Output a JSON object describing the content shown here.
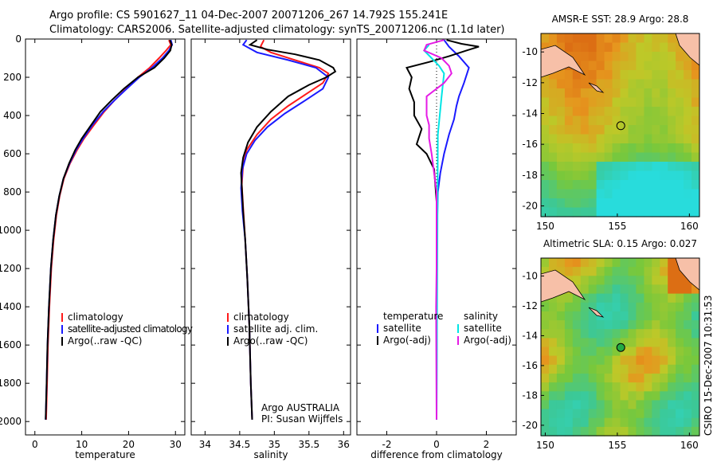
{
  "header": {
    "line1": "Argo profile: CS 5901627_11 04-Dec-2007 20071206_267 14.792S 155.241E",
    "line2": "Climatology: CARS2006. Satellite-adjusted climatology: synTS_20071206.nc (1.1d later)"
  },
  "side_label": "CSIRO 15-Dec-2007 10:31:53",
  "colors": {
    "clim": "#ff1a1a",
    "sat": "#1a1aff",
    "argo": "#000000",
    "sal_sat": "#00e5e5",
    "sal_argo": "#e51ae5"
  },
  "chart_data": [
    {
      "type": "line",
      "id": "temperature",
      "xlabel": "temperature",
      "ylabel": "",
      "xlim": [
        -2,
        32
      ],
      "ylim": [
        2070,
        0
      ],
      "y_reversed": true,
      "xticks": [
        0,
        10,
        20,
        30
      ],
      "yticks": [
        0,
        200,
        400,
        600,
        800,
        1000,
        1200,
        1400,
        1600,
        1800,
        2000
      ],
      "legend": [
        "climatology",
        "satellite-adjusted climatology",
        "Argo(..raw -QC)"
      ],
      "series": [
        {
          "name": "climatology",
          "color": "#ff1a1a",
          "points": [
            [
              28.6,
              5
            ],
            [
              29.0,
              30
            ],
            [
              28.0,
              60
            ],
            [
              26.5,
              100
            ],
            [
              24.5,
              150
            ],
            [
              22.0,
              200
            ],
            [
              19.5,
              260
            ],
            [
              17.0,
              320
            ],
            [
              14.8,
              380
            ],
            [
              12.6,
              450
            ],
            [
              10.5,
              520
            ],
            [
              9.0,
              580
            ],
            [
              7.5,
              650
            ],
            [
              6.2,
              730
            ],
            [
              5.3,
              820
            ],
            [
              4.6,
              920
            ],
            [
              4.0,
              1050
            ],
            [
              3.5,
              1200
            ],
            [
              3.1,
              1400
            ],
            [
              2.8,
              1600
            ],
            [
              2.6,
              1800
            ],
            [
              2.4,
              1990
            ]
          ]
        },
        {
          "name": "satellite-adjusted climatology",
          "color": "#1a1aff",
          "points": [
            [
              29.0,
              5
            ],
            [
              29.3,
              30
            ],
            [
              28.6,
              60
            ],
            [
              27.2,
              100
            ],
            [
              25.0,
              150
            ],
            [
              22.3,
              200
            ],
            [
              19.6,
              260
            ],
            [
              17.0,
              320
            ],
            [
              14.6,
              380
            ],
            [
              12.3,
              450
            ],
            [
              10.3,
              520
            ],
            [
              8.8,
              580
            ],
            [
              7.4,
              650
            ],
            [
              6.1,
              730
            ],
            [
              5.2,
              820
            ],
            [
              4.5,
              920
            ],
            [
              3.9,
              1050
            ],
            [
              3.4,
              1200
            ],
            [
              3.0,
              1400
            ],
            [
              2.7,
              1600
            ],
            [
              2.5,
              1800
            ],
            [
              2.3,
              1990
            ]
          ]
        },
        {
          "name": "Argo(..raw -QC)",
          "color": "#000000",
          "points": [
            [
              28.8,
              5
            ],
            [
              29.2,
              30
            ],
            [
              28.9,
              60
            ],
            [
              27.6,
              100
            ],
            [
              25.5,
              150
            ],
            [
              22.0,
              200
            ],
            [
              19.0,
              260
            ],
            [
              16.4,
              320
            ],
            [
              14.0,
              380
            ],
            [
              12.0,
              450
            ],
            [
              10.0,
              520
            ],
            [
              8.6,
              580
            ],
            [
              7.3,
              650
            ],
            [
              6.1,
              730
            ],
            [
              5.2,
              820
            ],
            [
              4.5,
              920
            ],
            [
              3.9,
              1050
            ],
            [
              3.4,
              1200
            ],
            [
              3.0,
              1400
            ],
            [
              2.7,
              1600
            ],
            [
              2.5,
              1800
            ],
            [
              2.3,
              1990
            ]
          ]
        }
      ]
    },
    {
      "type": "line",
      "id": "salinity",
      "xlabel": "salinity",
      "ylabel": "",
      "xlim": [
        33.8,
        36.1
      ],
      "ylim": [
        2070,
        0
      ],
      "y_reversed": true,
      "xticks": [
        34,
        34.5,
        35,
        35.5,
        36
      ],
      "xticklabels": [
        "34",
        "34.5",
        "35",
        "35.5",
        "36"
      ],
      "legend": [
        "climatology",
        "satellite adj. clim.",
        "Argo(..raw -QC)"
      ],
      "annotation": [
        "Argo AUSTRALIA",
        "PI: Susan Wijffels"
      ],
      "series": [
        {
          "name": "climatology",
          "color": "#ff1a1a",
          "points": [
            [
              34.85,
              5
            ],
            [
              34.8,
              40
            ],
            [
              34.95,
              70
            ],
            [
              35.3,
              110
            ],
            [
              35.65,
              150
            ],
            [
              35.78,
              180
            ],
            [
              35.7,
              230
            ],
            [
              35.45,
              290
            ],
            [
              35.2,
              350
            ],
            [
              34.95,
              420
            ],
            [
              34.75,
              500
            ],
            [
              34.6,
              580
            ],
            [
              34.55,
              660
            ],
            [
              34.53,
              760
            ],
            [
              34.55,
              880
            ],
            [
              34.58,
              1050
            ],
            [
              34.61,
              1250
            ],
            [
              34.64,
              1500
            ],
            [
              34.66,
              1800
            ],
            [
              34.68,
              1990
            ]
          ]
        },
        {
          "name": "satellite adj. clim.",
          "color": "#1a1aff",
          "points": [
            [
              34.6,
              5
            ],
            [
              34.55,
              30
            ],
            [
              34.75,
              70
            ],
            [
              35.2,
              110
            ],
            [
              35.6,
              150
            ],
            [
              35.78,
              200
            ],
            [
              35.7,
              260
            ],
            [
              35.45,
              320
            ],
            [
              35.15,
              390
            ],
            [
              34.9,
              460
            ],
            [
              34.72,
              530
            ],
            [
              34.6,
              600
            ],
            [
              34.54,
              680
            ],
            [
              34.52,
              780
            ],
            [
              34.54,
              900
            ],
            [
              34.58,
              1050
            ],
            [
              34.61,
              1250
            ],
            [
              34.64,
              1500
            ],
            [
              34.66,
              1800
            ],
            [
              34.68,
              1990
            ]
          ]
        },
        {
          "name": "Argo(..raw -QC)",
          "color": "#000000",
          "points": [
            [
              34.75,
              5
            ],
            [
              34.65,
              30
            ],
            [
              34.9,
              55
            ],
            [
              35.3,
              80
            ],
            [
              35.65,
              110
            ],
            [
              35.85,
              150
            ],
            [
              35.88,
              170
            ],
            [
              35.75,
              200
            ],
            [
              35.5,
              240
            ],
            [
              35.2,
              300
            ],
            [
              34.95,
              380
            ],
            [
              34.75,
              460
            ],
            [
              34.62,
              540
            ],
            [
              34.55,
              620
            ],
            [
              34.52,
              700
            ],
            [
              34.55,
              900
            ],
            [
              34.58,
              1050
            ],
            [
              34.61,
              1250
            ],
            [
              34.64,
              1500
            ],
            [
              34.66,
              1800
            ],
            [
              34.68,
              1990
            ]
          ]
        }
      ]
    },
    {
      "type": "line",
      "id": "difference",
      "xlabel": "difference from climatology",
      "ylabel": "",
      "xlim": [
        -3.2,
        3.2
      ],
      "ylim": [
        2070,
        0
      ],
      "y_reversed": true,
      "xticks": [
        -2,
        0,
        2
      ],
      "legend_left_title": "temperature",
      "legend_left": [
        "satellite",
        "Argo(-adj)"
      ],
      "legend_right_title": "salinity",
      "legend_right": [
        "satellite",
        "Argo(-adj)"
      ],
      "series": [
        {
          "name": "temperature satellite",
          "color": "#1a1aff",
          "points": [
            [
              0.3,
              5
            ],
            [
              0.5,
              40
            ],
            [
              0.9,
              90
            ],
            [
              1.3,
              150
            ],
            [
              1.1,
              230
            ],
            [
              0.9,
              300
            ],
            [
              0.8,
              350
            ],
            [
              0.7,
              420
            ],
            [
              0.5,
              500
            ],
            [
              0.3,
              600
            ],
            [
              0.15,
              700
            ],
            [
              0.05,
              800
            ],
            [
              0.02,
              1000
            ],
            [
              0.0,
              1990
            ]
          ]
        },
        {
          "name": "temperature Argo(-adj)",
          "color": "#000000",
          "points": [
            [
              0.4,
              5
            ],
            [
              1.0,
              25
            ],
            [
              1.7,
              40
            ],
            [
              1.2,
              60
            ],
            [
              0.5,
              90
            ],
            [
              -0.3,
              120
            ],
            [
              -1.2,
              150
            ],
            [
              -1.0,
              200
            ],
            [
              -1.1,
              260
            ],
            [
              -0.9,
              330
            ],
            [
              -0.9,
              400
            ],
            [
              -0.6,
              470
            ],
            [
              -0.8,
              550
            ],
            [
              -0.4,
              600
            ],
            [
              -0.1,
              680
            ],
            [
              -0.05,
              760
            ],
            [
              0.0,
              850
            ],
            [
              0.0,
              1990
            ]
          ]
        },
        {
          "name": "salinity satellite",
          "color": "#00e5e5",
          "points": [
            [
              -0.3,
              30
            ],
            [
              -0.5,
              60
            ],
            [
              -0.2,
              100
            ],
            [
              0.1,
              140
            ],
            [
              0.3,
              180
            ],
            [
              0.2,
              300
            ],
            [
              0.05,
              500
            ],
            [
              0.0,
              1990
            ]
          ]
        },
        {
          "name": "salinity Argo(-adj)",
          "color": "#e51ae5",
          "points": [
            [
              0.3,
              5
            ],
            [
              -0.4,
              30
            ],
            [
              -0.5,
              60
            ],
            [
              0.2,
              100
            ],
            [
              0.5,
              140
            ],
            [
              0.6,
              180
            ],
            [
              0.3,
              230
            ],
            [
              -0.4,
              300
            ],
            [
              -0.4,
              400
            ],
            [
              -0.3,
              450
            ],
            [
              -0.3,
              520
            ],
            [
              -0.2,
              600
            ],
            [
              -0.1,
              700
            ],
            [
              0.0,
              800
            ],
            [
              0.0,
              1200
            ],
            [
              -0.02,
              1400
            ],
            [
              0.0,
              1990
            ]
          ]
        }
      ]
    }
  ],
  "maps": [
    {
      "title": "AMSR-E SST: 28.9 Argo: 28.8",
      "xticks": [
        "150",
        "155",
        "160"
      ],
      "yticks": [
        "-10",
        "-12",
        "-14",
        "-16",
        "-18",
        "-20"
      ],
      "palette": "sst",
      "argo_lon": 155.24,
      "argo_lat": -14.79
    },
    {
      "title": "Altimetric SLA: 0.15 Argo: 0.027",
      "xticks": [
        "150",
        "155",
        "160"
      ],
      "yticks": [
        "-10",
        "-12",
        "-14",
        "-16",
        "-18",
        "-20"
      ],
      "palette": "sla",
      "argo_lon": 155.24,
      "argo_lat": -14.79
    }
  ]
}
